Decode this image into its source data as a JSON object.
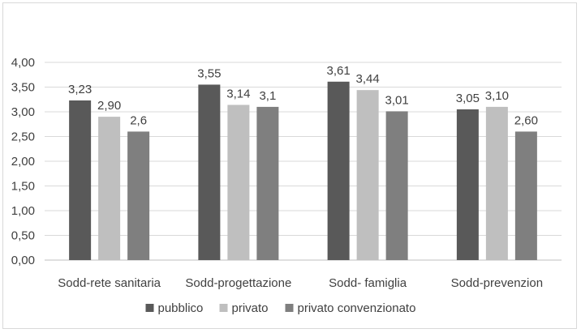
{
  "chart_data": {
    "type": "bar",
    "categories": [
      "Sodd-rete sanitaria",
      "Sodd-progettazione",
      "Sodd- famiglia",
      "Sodd-prevenzion"
    ],
    "series": [
      {
        "name": "pubblico",
        "values": [
          3.23,
          3.55,
          3.61,
          3.05
        ],
        "labels": [
          "3,23",
          "3,55",
          "3,61",
          "3,05"
        ],
        "color": "#595959"
      },
      {
        "name": "privato",
        "values": [
          2.9,
          3.14,
          3.44,
          3.1
        ],
        "labels": [
          "2,90",
          "3,14",
          "3,44",
          "3,10"
        ],
        "color": "#bfbfbf"
      },
      {
        "name": "privato convenzionato",
        "values": [
          2.6,
          3.1,
          3.01,
          2.6
        ],
        "labels": [
          "2,6",
          "3,1",
          "3,01",
          "2,60"
        ],
        "color": "#7f7f7f"
      }
    ],
    "yticks": [
      "0,00",
      "0,50",
      "1,00",
      "1,50",
      "2,00",
      "2,50",
      "3,00",
      "3,50",
      "4,00"
    ],
    "ylim": [
      0,
      4
    ],
    "grid": true,
    "legend": "bottom",
    "title": "",
    "xlabel": "",
    "ylabel": ""
  }
}
